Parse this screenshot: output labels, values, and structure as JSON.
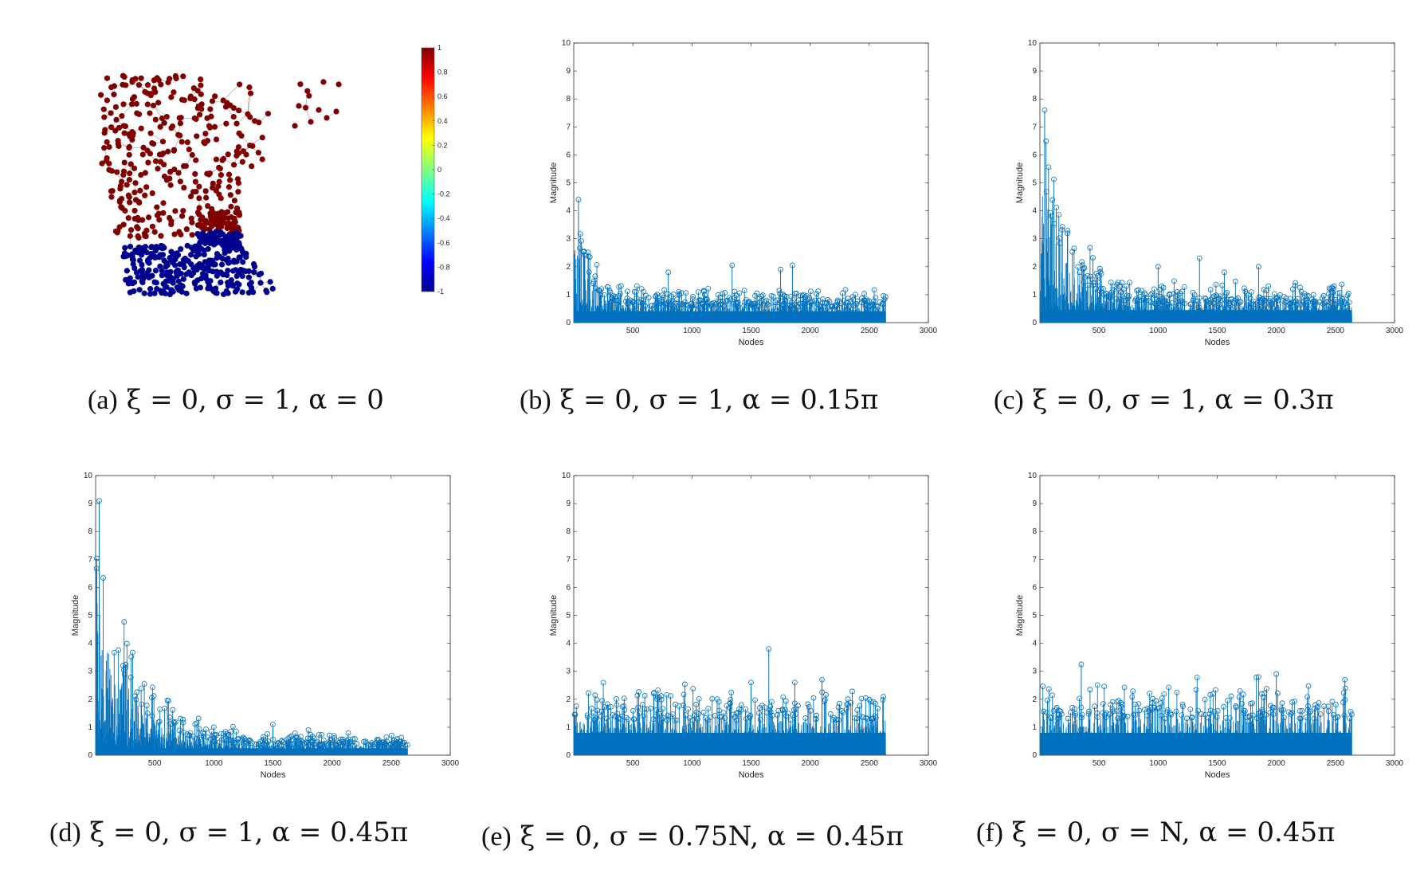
{
  "chart_data": [
    {
      "id": "a",
      "type": "scatter",
      "title": "",
      "description_kind": "graph-signal",
      "colorbar": {
        "ticks": [
          "1",
          "0.8",
          "0.6",
          "0.4",
          "0.2",
          "0",
          "-0.2",
          "-0.4",
          "-0.6",
          "-0.8",
          "-1"
        ],
        "range": [
          -1,
          1
        ]
      },
      "node_values": {
        "north": 1,
        "south": -1
      },
      "caption": {
        "label": "(a)",
        "math": "ξ = 0, σ = 1, α = 0"
      }
    },
    {
      "id": "b",
      "type": "line",
      "xlabel": "Nodes",
      "ylabel": "Magnitude",
      "xlim": [
        0,
        3000
      ],
      "ylim": [
        0,
        10
      ],
      "xticks": [
        "500",
        "1000",
        "1500",
        "2000",
        "2500",
        "3000"
      ],
      "yticks": [
        "0",
        "1",
        "2",
        "3",
        "4",
        "5",
        "6",
        "7",
        "8",
        "9",
        "10"
      ],
      "n_nodes": 2640,
      "peak": 4.4,
      "peak_at": 40,
      "decay": 0.35,
      "baseline": 0.9,
      "outliers": [
        [
          1340,
          2.05
        ],
        [
          1850,
          2.05
        ],
        [
          1750,
          1.9
        ],
        [
          800,
          1.8
        ]
      ],
      "caption": {
        "label": "(b)",
        "math": "ξ = 0, σ = 1, α = 0.15π"
      }
    },
    {
      "id": "c",
      "type": "line",
      "xlabel": "Nodes",
      "ylabel": "Magnitude",
      "xlim": [
        0,
        3000
      ],
      "ylim": [
        0,
        10
      ],
      "xticks": [
        "500",
        "1000",
        "1500",
        "2000",
        "2500",
        "3000"
      ],
      "yticks": [
        "0",
        "1",
        "2",
        "3",
        "4",
        "5",
        "6",
        "7",
        "8",
        "9",
        "10"
      ],
      "n_nodes": 2640,
      "peak": 7.6,
      "peak_at": 40,
      "decay": 0.2,
      "baseline": 1.0,
      "outliers": [
        [
          1350,
          2.3
        ],
        [
          1850,
          2.0
        ],
        [
          1000,
          2.0
        ],
        [
          1560,
          1.8
        ]
      ],
      "caption": {
        "label": "(c)",
        "math": "ξ = 0, σ = 1, α = 0.3π"
      }
    },
    {
      "id": "d",
      "type": "line",
      "xlabel": "Nodes",
      "ylabel": "Magnitude",
      "xlim": [
        0,
        3000
      ],
      "ylim": [
        0,
        10
      ],
      "xticks": [
        "500",
        "1000",
        "1500",
        "2000",
        "2500",
        "3000"
      ],
      "yticks": [
        "0",
        "1",
        "2",
        "3",
        "4",
        "5",
        "6",
        "7",
        "8",
        "9",
        "10"
      ],
      "n_nodes": 2640,
      "peak": 9.1,
      "peak_at": 30,
      "decay": 0.15,
      "baseline": 0.55,
      "outliers": [
        [
          1000,
          1.0
        ],
        [
          1500,
          1.1
        ],
        [
          1800,
          0.9
        ]
      ],
      "caption": {
        "label": "(d)",
        "math": "ξ = 0, σ = 1, α = 0.45π"
      }
    },
    {
      "id": "e",
      "type": "line",
      "xlabel": "Nodes",
      "ylabel": "Magnitude",
      "xlim": [
        0,
        3000
      ],
      "ylim": [
        0,
        10
      ],
      "xticks": [
        "500",
        "1000",
        "1500",
        "2000",
        "2500",
        "3000"
      ],
      "yticks": [
        "0",
        "1",
        "2",
        "3",
        "4",
        "5",
        "6",
        "7",
        "8",
        "9",
        "10"
      ],
      "n_nodes": 2640,
      "peak": 2.4,
      "peak_at": 100,
      "decay": 0,
      "baseline": 2.0,
      "outliers": [
        [
          1650,
          3.8
        ],
        [
          1500,
          2.6
        ],
        [
          1870,
          2.6
        ],
        [
          2100,
          2.7
        ]
      ],
      "caption": {
        "label": "(e)",
        "math": "ξ = 0, σ = 0.75N, α = 0.45π"
      }
    },
    {
      "id": "f",
      "type": "line",
      "xlabel": "Nodes",
      "ylabel": "Magnitude",
      "xlim": [
        0,
        3000
      ],
      "ylim": [
        0,
        10
      ],
      "xticks": [
        "500",
        "1000",
        "1500",
        "2000",
        "2500",
        "3000"
      ],
      "yticks": [
        "0",
        "1",
        "2",
        "3",
        "4",
        "5",
        "6",
        "7",
        "8",
        "9",
        "10"
      ],
      "n_nodes": 2640,
      "peak": 2.2,
      "peak_at": 100,
      "decay": 0,
      "baseline": 2.1,
      "outliers": [
        [
          350,
          3.25
        ],
        [
          2000,
          2.9
        ],
        [
          1850,
          2.8
        ],
        [
          2580,
          2.7
        ]
      ],
      "caption": {
        "label": "(f)",
        "math": "ξ = 0, σ = N, α = 0.45π"
      }
    }
  ],
  "colors": {
    "stem": "#0072BD",
    "node_high": "#800000",
    "node_low": "#00008F",
    "edge": "#999999"
  }
}
